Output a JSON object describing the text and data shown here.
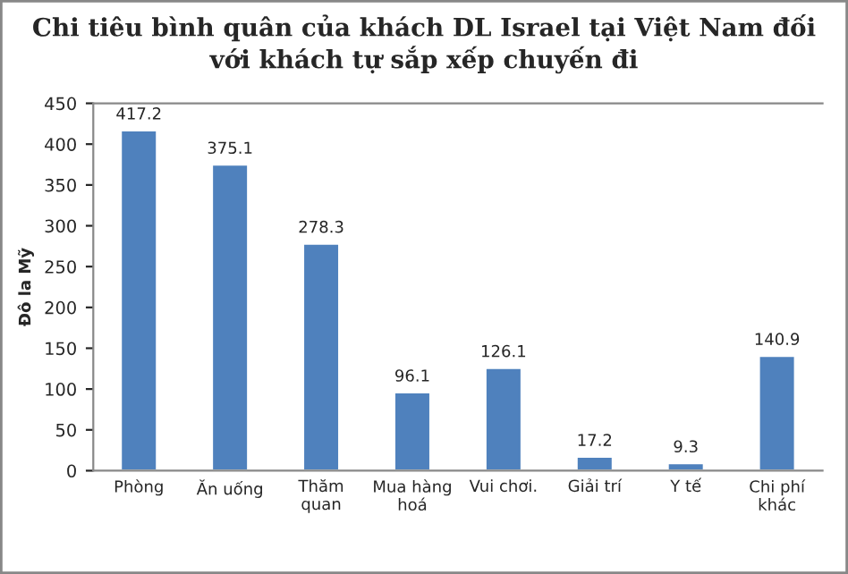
{
  "chart_data": {
    "type": "bar",
    "title": "Chi tiêu bình quân của khách DL Israel tại Việt Nam đối\nvới khách tự sắp xếp chuyến đi",
    "ylabel": "Đô la Mỹ",
    "categories": [
      "Phòng",
      "Ăn uống",
      "Thăm\nquan",
      "Mua hàng\nhoá",
      "Vui chơi.",
      "Giải trí",
      "Y tế",
      "Chi phí\nkhác"
    ],
    "values": [
      417.2,
      375.1,
      278.3,
      96.1,
      126.1,
      17.2,
      9.3,
      140.9
    ],
    "color": "#4f81bd",
    "ylim": [
      0,
      450
    ],
    "yticks": [
      0,
      50,
      100,
      150,
      200,
      250,
      300,
      350,
      400,
      450
    ],
    "grid": false,
    "data_labels": true
  }
}
